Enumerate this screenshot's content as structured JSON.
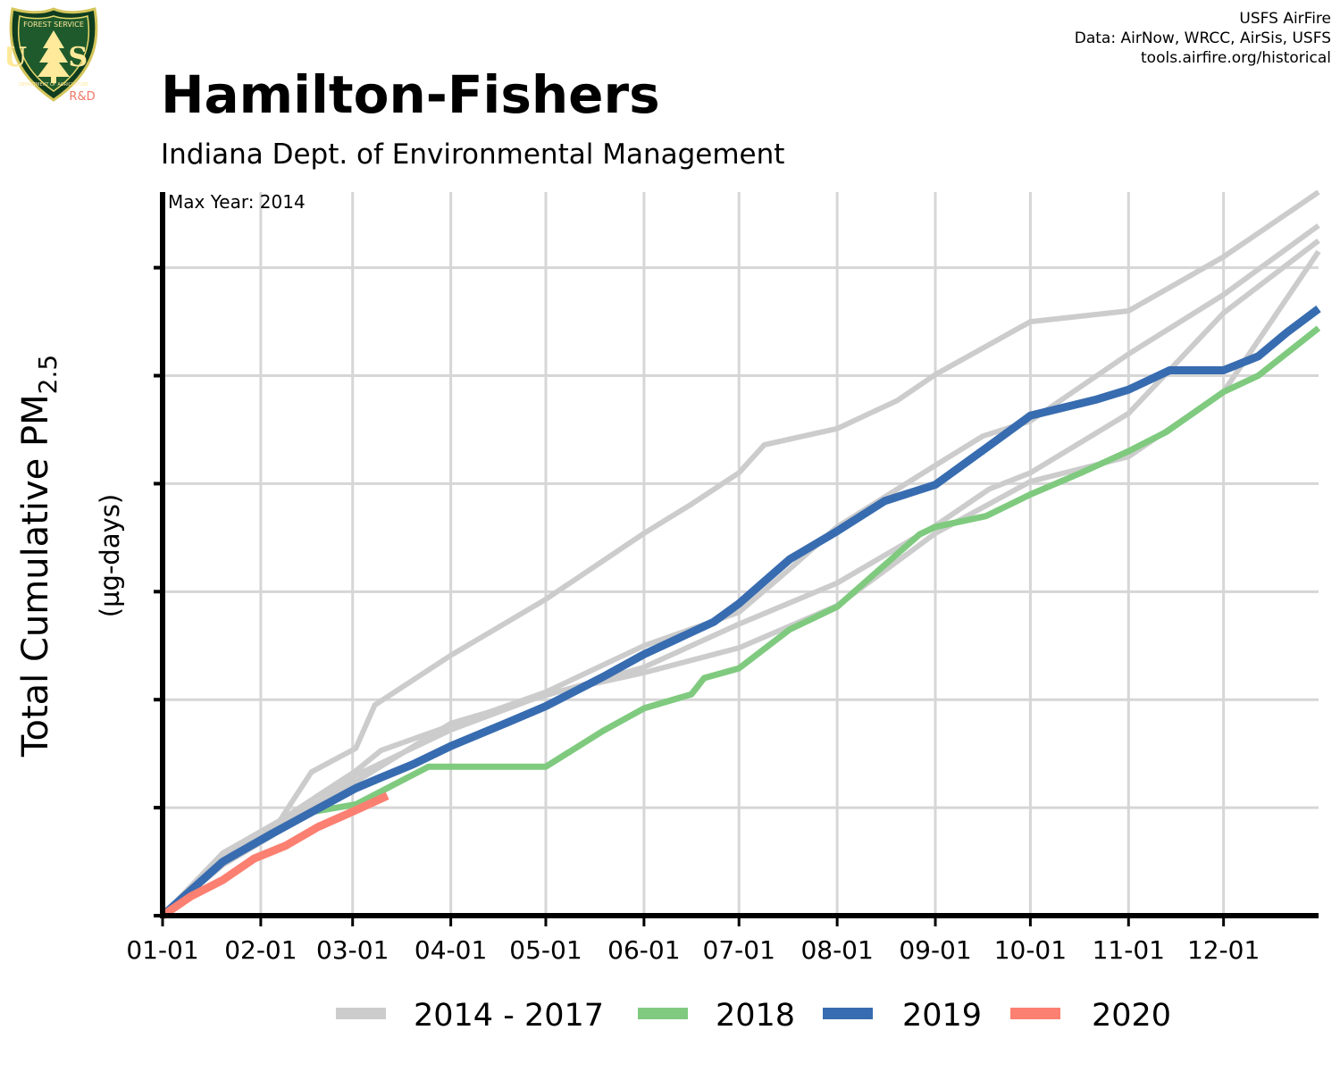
{
  "header": {
    "title": "Hamilton-Fishers",
    "subtitle": "Indiana Dept. of Environmental Management",
    "credits": [
      "USFS AirFire",
      "Data: AirNow, WRCC, AirSis, USFS",
      "tools.airfire.org/historical"
    ],
    "logo": {
      "top_text": "FOREST SERVICE",
      "letters": "U S",
      "bottom_text": "DEPARTMENT OF AGRICULTURE",
      "badge": "R&D"
    }
  },
  "chart_data": {
    "type": "line",
    "annotation": "Max Year: 2014",
    "ylabel_main": "Total Cumulative PM",
    "ylabel_sub": "2.5",
    "ylabel_units": "(µg-days)",
    "x_axis_unit": "day of year",
    "xlim": [
      1,
      366
    ],
    "ylim": [
      0,
      6700
    ],
    "x_ticks": [
      {
        "label": "01-01",
        "day": 1
      },
      {
        "label": "02-01",
        "day": 32
      },
      {
        "label": "03-01",
        "day": 61
      },
      {
        "label": "04-01",
        "day": 92
      },
      {
        "label": "05-01",
        "day": 122
      },
      {
        "label": "06-01",
        "day": 153
      },
      {
        "label": "07-01",
        "day": 183
      },
      {
        "label": "08-01",
        "day": 214
      },
      {
        "label": "09-01",
        "day": 245
      },
      {
        "label": "10-01",
        "day": 275
      },
      {
        "label": "11-01",
        "day": 306
      },
      {
        "label": "12-01",
        "day": 336
      }
    ],
    "y_gridlines": [
      0,
      1000,
      2000,
      3000,
      4000,
      5000,
      6000
    ],
    "legend": [
      {
        "label": "2014 - 2017",
        "color": "#cccccc"
      },
      {
        "label": "2018",
        "color": "#7fca7f"
      },
      {
        "label": "2019",
        "color": "#386cb0"
      },
      {
        "label": "2020",
        "color": "#fb8072"
      }
    ],
    "series": [
      {
        "group": "2014 - 2017",
        "color": "#cccccc",
        "width": 6,
        "x": [
          1,
          20,
          38,
          48,
          62,
          68,
          92,
          122,
          153,
          168,
          183,
          191,
          214,
          233,
          245,
          275,
          306,
          336,
          366
        ],
        "y": [
          0,
          580,
          880,
          1330,
          1550,
          1950,
          2410,
          2930,
          3540,
          3810,
          4100,
          4360,
          4510,
          4770,
          5010,
          5500,
          5600,
          6100,
          6700
        ]
      },
      {
        "group": "2014 - 2017",
        "color": "#cccccc",
        "width": 6,
        "x": [
          1,
          20,
          35,
          50,
          62,
          70,
          92,
          122,
          153,
          183,
          199,
          214,
          245,
          260,
          275,
          306,
          336,
          366
        ],
        "y": [
          0,
          520,
          820,
          1110,
          1340,
          1530,
          1760,
          2070,
          2500,
          2810,
          3210,
          3600,
          4170,
          4440,
          4580,
          5200,
          5750,
          6390
        ]
      },
      {
        "group": "2014 - 2017",
        "color": "#cccccc",
        "width": 6,
        "x": [
          1,
          20,
          35,
          50,
          62,
          92,
          122,
          153,
          183,
          214,
          245,
          262,
          275,
          306,
          336,
          366
        ],
        "y": [
          0,
          470,
          730,
          1010,
          1240,
          1780,
          2040,
          2300,
          2700,
          3080,
          3610,
          3950,
          4100,
          4650,
          5580,
          6250
        ]
      },
      {
        "group": "2014 - 2017",
        "color": "#cccccc",
        "width": 6,
        "x": [
          1,
          20,
          35,
          50,
          62,
          92,
          122,
          153,
          183,
          214,
          245,
          275,
          306,
          336,
          366
        ],
        "y": [
          0,
          500,
          780,
          1050,
          1300,
          1720,
          2050,
          2250,
          2480,
          2870,
          3540,
          4020,
          4250,
          4850,
          6150
        ]
      },
      {
        "group": "2018",
        "color": "#7fca7f",
        "width": 7,
        "x": [
          1,
          20,
          35,
          48,
          62,
          85,
          92,
          100,
          122,
          140,
          153,
          168,
          172,
          183,
          199,
          214,
          240,
          245,
          261,
          275,
          291,
          306,
          318,
          336,
          347,
          366
        ],
        "y": [
          0,
          500,
          760,
          960,
          1030,
          1380,
          1380,
          1380,
          1380,
          1710,
          1920,
          2050,
          2200,
          2290,
          2650,
          2860,
          3530,
          3600,
          3700,
          3900,
          4100,
          4300,
          4480,
          4850,
          5000,
          5440
        ]
      },
      {
        "group": "2019",
        "color": "#386cb0",
        "width": 9,
        "x": [
          1,
          20,
          35,
          50,
          62,
          70,
          80,
          92,
          110,
          122,
          140,
          153,
          175,
          183,
          199,
          214,
          229,
          245,
          261,
          275,
          296,
          306,
          319,
          336,
          347,
          356,
          366
        ],
        "y": [
          0,
          500,
          750,
          990,
          1180,
          1280,
          1400,
          1570,
          1790,
          1940,
          2210,
          2420,
          2720,
          2890,
          3300,
          3560,
          3840,
          3990,
          4330,
          4630,
          4780,
          4870,
          5050,
          5050,
          5180,
          5400,
          5620
        ]
      },
      {
        "group": "2020",
        "color": "#fb8072",
        "width": 9,
        "x": [
          1,
          10,
          20,
          30,
          40,
          50,
          60,
          66,
          72
        ],
        "y": [
          0,
          180,
          330,
          530,
          650,
          820,
          950,
          1030,
          1110
        ]
      }
    ]
  }
}
